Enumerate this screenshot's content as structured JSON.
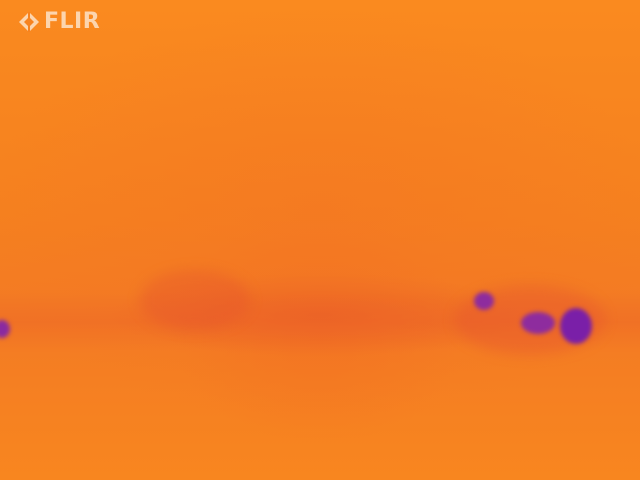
{
  "brand": {
    "logo_text": "FLIR",
    "logo_icon": "flir-diamond-icon"
  },
  "thermal_palette": {
    "background": "#f7821f",
    "cool_band": "#e85a28",
    "cold_spot": "#7a1fa8",
    "logo_color": "#fde3c8"
  }
}
